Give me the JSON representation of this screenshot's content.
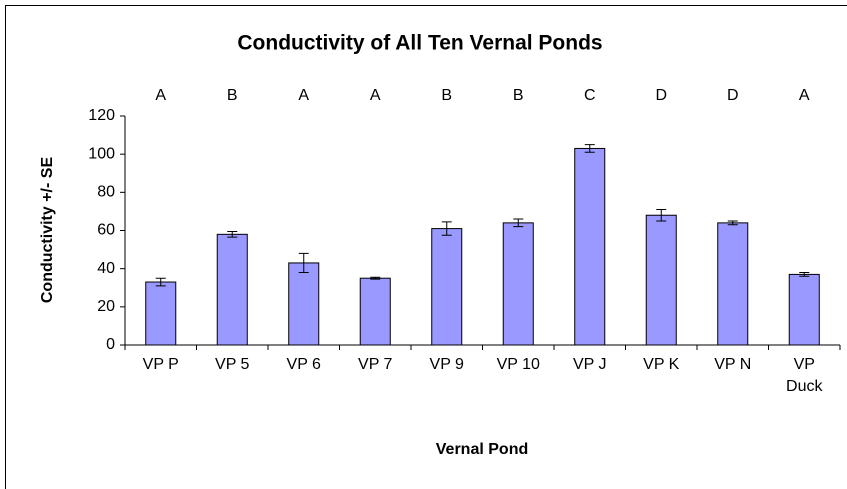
{
  "chart_data": {
    "type": "bar",
    "title": "Conductivity of All Ten Vernal Ponds",
    "xlabel": "Vernal Pond",
    "ylabel": "Conductivity +/- SE",
    "categories": [
      "VP P",
      "VP 5",
      "VP 6",
      "VP 7",
      "VP 9",
      "VP 10",
      "VP J",
      "VP K",
      "VP N",
      "VP Duck"
    ],
    "values": [
      33,
      58,
      43,
      35,
      61,
      64,
      103,
      68,
      64,
      37
    ],
    "errors": [
      2,
      1.5,
      5,
      0.5,
      3.5,
      2,
      2,
      3,
      1,
      1
    ],
    "annotations": [
      "A",
      "B",
      "A",
      "A",
      "B",
      "B",
      "C",
      "D",
      "D",
      "A"
    ],
    "color": "#9999ff",
    "ylim": [
      0,
      120
    ],
    "yticks": [
      0,
      20,
      40,
      60,
      80,
      100,
      120
    ],
    "grid": false
  }
}
